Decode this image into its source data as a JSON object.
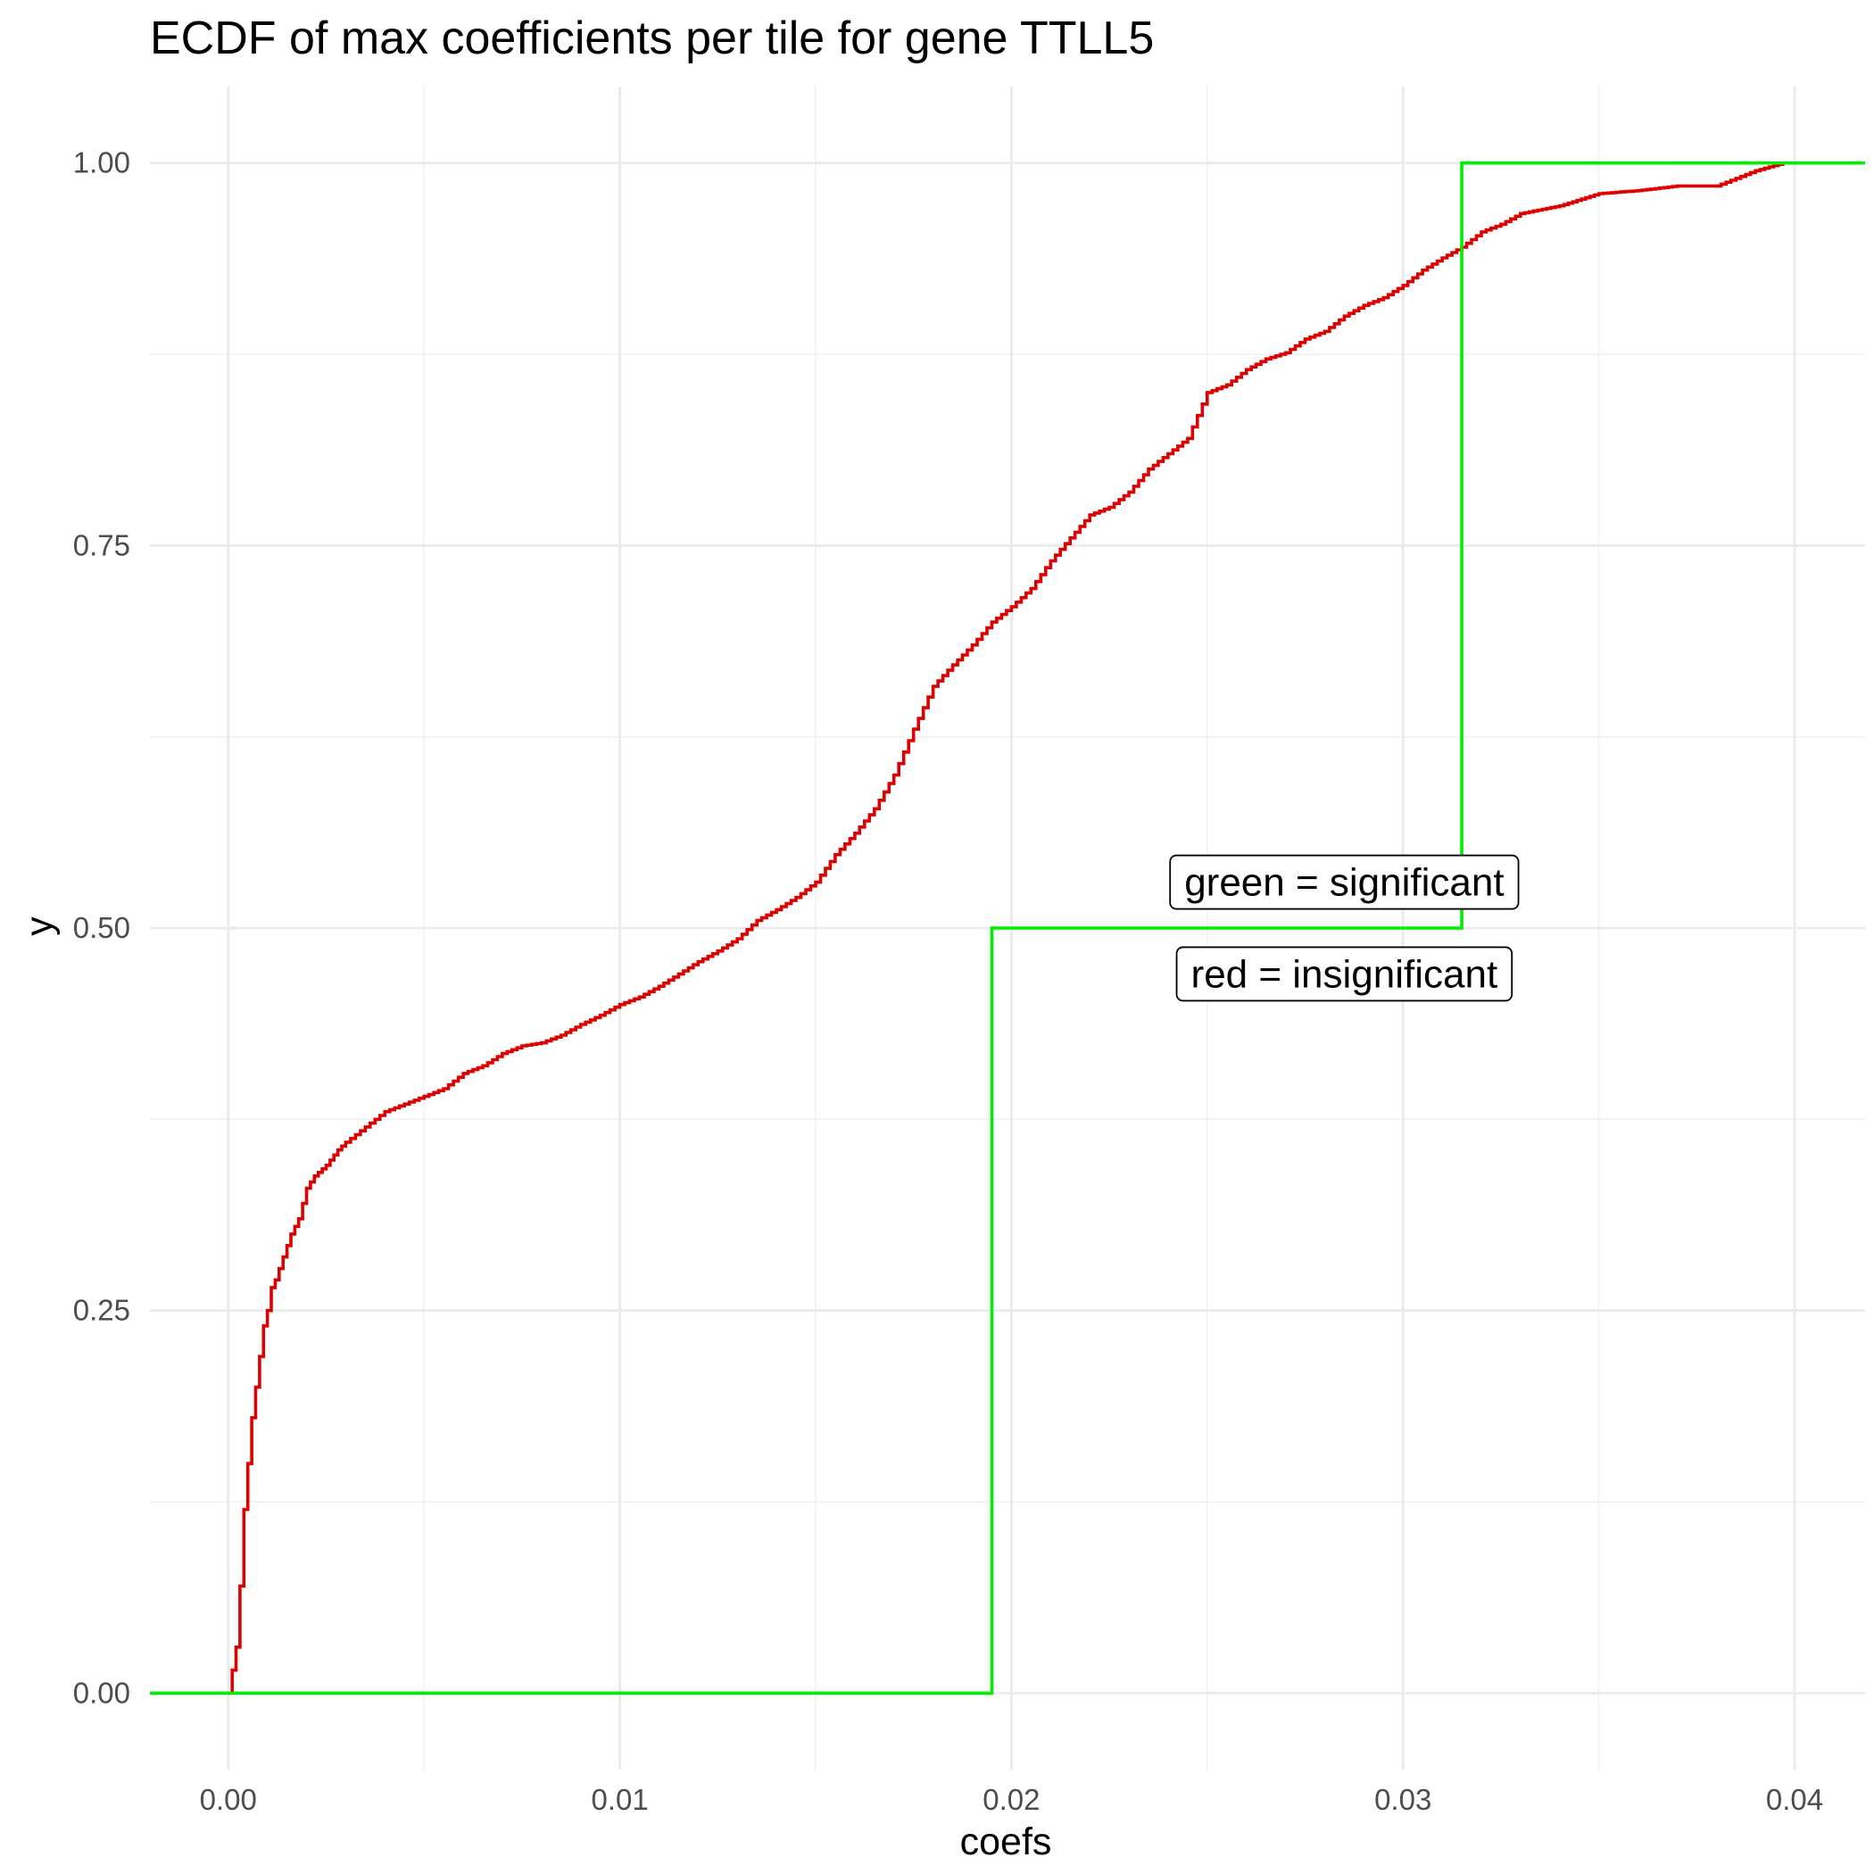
{
  "chart_data": {
    "type": "line",
    "subtype": "ecdf-step",
    "title": "ECDF of max coefficients per tile for gene TTLL5",
    "xlabel": "coefs",
    "ylabel": "y",
    "xlim": [
      -0.002,
      0.0418
    ],
    "ylim": [
      -0.05,
      1.05
    ],
    "x_ticks": [
      0.0,
      0.01,
      0.02,
      0.03,
      0.04
    ],
    "x_tick_labels": [
      "0.00",
      "0.01",
      "0.02",
      "0.03",
      "0.04"
    ],
    "y_ticks": [
      0.0,
      0.25,
      0.5,
      0.75,
      1.0
    ],
    "y_tick_labels": [
      "0.00",
      "0.25",
      "0.50",
      "0.75",
      "1.00"
    ],
    "grid": true,
    "legend": "none",
    "series": [
      {
        "color": "#00ee00",
        "step": true,
        "x": [
          -0.002,
          0.0195,
          0.0315,
          0.0418
        ],
        "y": [
          0.0,
          0.5,
          1.0,
          1.0
        ]
      },
      {
        "color": "#dd0000",
        "step": false,
        "x": [
          0.0,
          0.0002,
          0.0003,
          0.0004,
          0.0005,
          0.0006,
          0.0007,
          0.0008,
          0.0009,
          0.001,
          0.0011,
          0.0012,
          0.0014,
          0.0016,
          0.0018,
          0.002,
          0.0022,
          0.0025,
          0.0028,
          0.003,
          0.0035,
          0.004,
          0.0045,
          0.005,
          0.0055,
          0.006,
          0.0065,
          0.007,
          0.0075,
          0.008,
          0.0085,
          0.009,
          0.0095,
          0.01,
          0.0105,
          0.011,
          0.0115,
          0.012,
          0.0125,
          0.013,
          0.0135,
          0.014,
          0.0145,
          0.015,
          0.0155,
          0.016,
          0.0165,
          0.017,
          0.0175,
          0.018,
          0.0185,
          0.019,
          0.0195,
          0.02,
          0.0205,
          0.021,
          0.0215,
          0.022,
          0.0225,
          0.023,
          0.0235,
          0.024,
          0.0245,
          0.025,
          0.0255,
          0.026,
          0.0265,
          0.027,
          0.0275,
          0.028,
          0.0285,
          0.029,
          0.0295,
          0.03,
          0.0305,
          0.031,
          0.0315,
          0.032,
          0.0325,
          0.033,
          0.034,
          0.035,
          0.036,
          0.037,
          0.038,
          0.0385,
          0.039,
          0.0397
        ],
        "y": [
          0.0,
          0.03,
          0.07,
          0.12,
          0.15,
          0.18,
          0.2,
          0.22,
          0.24,
          0.25,
          0.265,
          0.27,
          0.285,
          0.3,
          0.31,
          0.33,
          0.338,
          0.345,
          0.355,
          0.36,
          0.37,
          0.38,
          0.385,
          0.39,
          0.395,
          0.405,
          0.41,
          0.418,
          0.423,
          0.425,
          0.43,
          0.437,
          0.443,
          0.45,
          0.455,
          0.462,
          0.47,
          0.478,
          0.485,
          0.493,
          0.505,
          0.512,
          0.52,
          0.53,
          0.548,
          0.562,
          0.578,
          0.6,
          0.63,
          0.658,
          0.672,
          0.685,
          0.7,
          0.71,
          0.722,
          0.74,
          0.755,
          0.77,
          0.775,
          0.785,
          0.8,
          0.81,
          0.82,
          0.85,
          0.855,
          0.865,
          0.872,
          0.876,
          0.885,
          0.89,
          0.9,
          0.907,
          0.912,
          0.92,
          0.93,
          0.938,
          0.945,
          0.955,
          0.96,
          0.967,
          0.972,
          0.98,
          0.982,
          0.985,
          0.985,
          0.99,
          0.995,
          1.0
        ]
      }
    ],
    "annotations": [
      {
        "text": "green = significant",
        "x": 0.0285,
        "y": 0.53
      },
      {
        "text": "red = insignificant",
        "x": 0.0285,
        "y": 0.47
      }
    ]
  }
}
